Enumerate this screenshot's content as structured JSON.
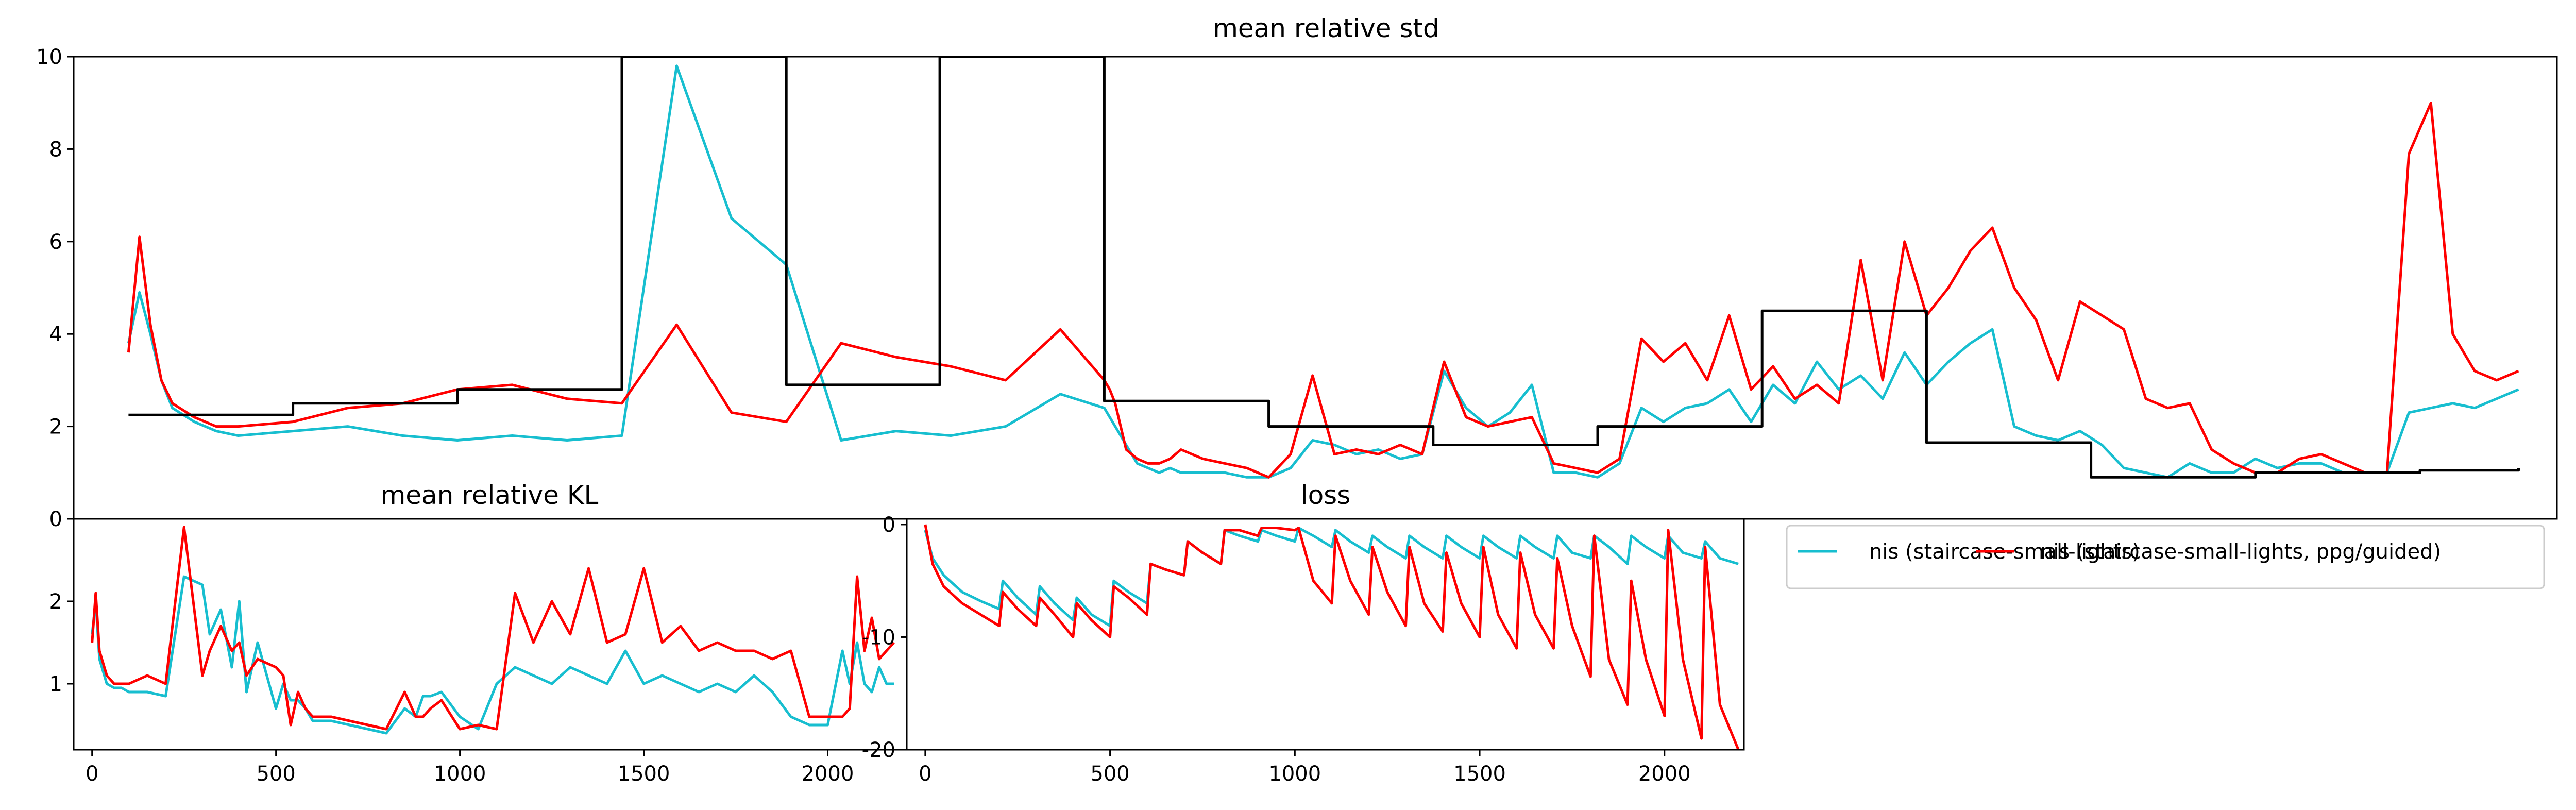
{
  "colors": {
    "nis": "#17becf",
    "ppg": "#ff0000",
    "black": "#000000"
  },
  "legend": {
    "entries": [
      {
        "label": "nis (staircase-small-lights)",
        "color": "#17becf"
      },
      {
        "label": "nis (staircase-small-lights, ppg/guided)",
        "color": "#ff0000"
      }
    ]
  },
  "chart_data": [
    {
      "id": "std",
      "type": "line",
      "title": "mean relative std",
      "xlim": [
        -50,
        2215
      ],
      "ylim": [
        0,
        10
      ],
      "xticks": [],
      "yticks": [
        0,
        2,
        4,
        6,
        8,
        10
      ],
      "series": [
        {
          "name": "nis (staircase-small-lights)",
          "color": "#17becf",
          "x": [
            0,
            10,
            20,
            30,
            40,
            60,
            80,
            100,
            150,
            200,
            250,
            300,
            350,
            400,
            450,
            500,
            550,
            600,
            650,
            700,
            750,
            800,
            850,
            890,
            895,
            900,
            910,
            920,
            930,
            940,
            950,
            960,
            980,
            1000,
            1020,
            1040,
            1060,
            1080,
            1100,
            1120,
            1140,
            1160,
            1180,
            1200,
            1220,
            1240,
            1260,
            1280,
            1300,
            1320,
            1340,
            1360,
            1380,
            1400,
            1420,
            1440,
            1460,
            1480,
            1500,
            1520,
            1540,
            1560,
            1580,
            1600,
            1620,
            1640,
            1660,
            1680,
            1700,
            1720,
            1740,
            1760,
            1780,
            1800,
            1820,
            1840,
            1860,
            1880,
            1900,
            1920,
            1940,
            1960,
            1980,
            2000,
            2020,
            2040,
            2060,
            2080,
            2100,
            2120,
            2140,
            2160,
            2180
          ],
          "y": [
            3.8,
            4.9,
            4.0,
            3.0,
            2.4,
            2.1,
            1.9,
            1.8,
            1.9,
            2.0,
            1.8,
            1.7,
            1.8,
            1.7,
            1.8,
            9.8,
            6.5,
            5.5,
            1.7,
            1.9,
            1.8,
            2.0,
            2.7,
            2.4,
            2.2,
            2.0,
            1.6,
            1.2,
            1.1,
            1.0,
            1.1,
            1.0,
            1.0,
            1.0,
            0.9,
            0.9,
            1.1,
            1.7,
            1.6,
            1.4,
            1.5,
            1.3,
            1.4,
            3.2,
            2.4,
            2.0,
            2.3,
            2.9,
            1.0,
            1.0,
            0.9,
            1.2,
            2.4,
            2.1,
            2.4,
            2.5,
            2.8,
            2.1,
            2.9,
            2.5,
            3.4,
            2.8,
            3.1,
            2.6,
            3.6,
            2.9,
            3.4,
            3.8,
            4.1,
            2.0,
            1.8,
            1.7,
            1.9,
            1.6,
            1.1,
            1.0,
            0.9,
            1.2,
            1.0,
            1.0,
            1.3,
            1.1,
            1.2,
            1.2,
            1.0,
            1.0,
            1.0,
            2.3,
            2.4,
            2.5,
            2.4,
            2.6,
            2.8
          ]
        },
        {
          "name": "nis (staircase-small-lights, ppg/guided)",
          "color": "#ff0000",
          "x": [
            0,
            10,
            20,
            30,
            40,
            60,
            80,
            100,
            150,
            200,
            250,
            300,
            350,
            400,
            450,
            500,
            550,
            600,
            650,
            700,
            750,
            800,
            850,
            890,
            895,
            900,
            910,
            920,
            930,
            940,
            950,
            960,
            980,
            1000,
            1020,
            1040,
            1060,
            1080,
            1100,
            1120,
            1140,
            1160,
            1180,
            1200,
            1220,
            1240,
            1260,
            1280,
            1300,
            1320,
            1340,
            1360,
            1380,
            1400,
            1420,
            1440,
            1460,
            1480,
            1500,
            1520,
            1540,
            1560,
            1580,
            1600,
            1620,
            1640,
            1660,
            1680,
            1700,
            1720,
            1740,
            1760,
            1780,
            1800,
            1820,
            1840,
            1860,
            1880,
            1900,
            1920,
            1940,
            1960,
            1980,
            2000,
            2020,
            2040,
            2060,
            2080,
            2100,
            2120,
            2140,
            2160,
            2180
          ],
          "y": [
            3.6,
            6.1,
            4.2,
            3.0,
            2.5,
            2.2,
            2.0,
            2.0,
            2.1,
            2.4,
            2.5,
            2.8,
            2.9,
            2.6,
            2.5,
            4.2,
            2.3,
            2.1,
            3.8,
            3.5,
            3.3,
            3.0,
            4.1,
            3.0,
            2.8,
            2.5,
            1.5,
            1.3,
            1.2,
            1.2,
            1.3,
            1.5,
            1.3,
            1.2,
            1.1,
            0.9,
            1.4,
            3.1,
            1.4,
            1.5,
            1.4,
            1.6,
            1.4,
            3.4,
            2.2,
            2.0,
            2.1,
            2.2,
            1.2,
            1.1,
            1.0,
            1.3,
            3.9,
            3.4,
            3.8,
            3.0,
            4.4,
            2.8,
            3.3,
            2.6,
            2.9,
            2.5,
            5.6,
            3.0,
            6.0,
            4.4,
            5.0,
            5.8,
            6.3,
            5.0,
            4.3,
            3.0,
            4.7,
            4.4,
            4.1,
            2.6,
            2.4,
            2.5,
            1.5,
            1.2,
            1.0,
            1.0,
            1.3,
            1.4,
            1.2,
            1.0,
            1.0,
            7.9,
            9.0,
            4.0,
            3.2,
            3.0,
            3.2
          ]
        },
        {
          "name": "",
          "color": "#000000",
          "step": true,
          "x": [
            0,
            150,
            300,
            450,
            600,
            740,
            890,
            1040,
            1190,
            1340,
            1490,
            1640,
            1790,
            1940,
            2090,
            2180
          ],
          "y": [
            2.25,
            2.5,
            2.8,
            10.0,
            2.9,
            10.0,
            2.55,
            2.0,
            1.6,
            2.0,
            4.5,
            1.65,
            0.9,
            1.0,
            1.05,
            1.1
          ]
        }
      ]
    },
    {
      "id": "kl",
      "type": "line",
      "title": "mean relative KL",
      "xlim": [
        -50,
        2215
      ],
      "ylim": [
        0.2,
        3.0
      ],
      "xticks": [
        0,
        500,
        1000,
        1500,
        2000
      ],
      "yticks": [
        1,
        2
      ],
      "series": [
        {
          "name": "nis (staircase-small-lights)",
          "color": "#17becf",
          "x": [
            0,
            10,
            20,
            40,
            60,
            80,
            100,
            150,
            200,
            250,
            300,
            320,
            350,
            380,
            400,
            420,
            450,
            500,
            520,
            540,
            560,
            580,
            600,
            650,
            700,
            750,
            800,
            850,
            880,
            900,
            920,
            950,
            1000,
            1050,
            1100,
            1150,
            1200,
            1250,
            1300,
            1350,
            1400,
            1450,
            1500,
            1550,
            1600,
            1650,
            1700,
            1750,
            1800,
            1850,
            1900,
            1950,
            2000,
            2040,
            2060,
            2080,
            2100,
            2120,
            2140,
            2160,
            2180
          ],
          "y": [
            1.6,
            2.0,
            1.3,
            1.0,
            0.95,
            0.95,
            0.9,
            0.9,
            0.85,
            2.3,
            2.2,
            1.6,
            1.9,
            1.2,
            2.0,
            0.9,
            1.5,
            0.7,
            1.0,
            0.8,
            0.8,
            0.7,
            0.55,
            0.55,
            0.5,
            0.45,
            0.4,
            0.7,
            0.6,
            0.85,
            0.85,
            0.9,
            0.6,
            0.45,
            1.0,
            1.2,
            1.1,
            1.0,
            1.2,
            1.1,
            1.0,
            1.4,
            1.0,
            1.1,
            1.0,
            0.9,
            1.0,
            0.9,
            1.1,
            0.9,
            0.6,
            0.5,
            0.5,
            1.4,
            1.0,
            1.5,
            1.0,
            0.9,
            1.2,
            1.0,
            1.0
          ]
        },
        {
          "name": "nis (staircase-small-lights, ppg/guided)",
          "color": "#ff0000",
          "x": [
            0,
            10,
            20,
            40,
            60,
            80,
            100,
            150,
            200,
            250,
            300,
            320,
            350,
            380,
            400,
            420,
            450,
            500,
            520,
            540,
            560,
            580,
            600,
            650,
            700,
            750,
            800,
            850,
            880,
            900,
            920,
            950,
            1000,
            1050,
            1100,
            1150,
            1200,
            1250,
            1300,
            1350,
            1400,
            1450,
            1500,
            1550,
            1600,
            1650,
            1700,
            1750,
            1800,
            1850,
            1900,
            1950,
            2000,
            2040,
            2060,
            2080,
            2100,
            2120,
            2140,
            2160,
            2180
          ],
          "y": [
            1.5,
            2.1,
            1.4,
            1.1,
            1.0,
            1.0,
            1.0,
            1.1,
            1.0,
            2.9,
            1.1,
            1.4,
            1.7,
            1.4,
            1.5,
            1.1,
            1.3,
            1.2,
            1.1,
            0.5,
            0.9,
            0.7,
            0.6,
            0.6,
            0.55,
            0.5,
            0.45,
            0.9,
            0.6,
            0.6,
            0.7,
            0.8,
            0.45,
            0.5,
            0.45,
            2.1,
            1.5,
            2.0,
            1.6,
            2.4,
            1.5,
            1.6,
            2.4,
            1.5,
            1.7,
            1.4,
            1.5,
            1.4,
            1.4,
            1.3,
            1.4,
            0.6,
            0.6,
            0.6,
            0.7,
            2.3,
            1.4,
            1.8,
            1.3,
            1.4,
            1.5
          ]
        }
      ]
    },
    {
      "id": "loss",
      "type": "line",
      "title": "loss",
      "xlim": [
        -50,
        2215
      ],
      "ylim": [
        -20,
        0.5
      ],
      "xticks": [
        0,
        500,
        1000,
        1500,
        2000
      ],
      "yticks": [
        -20,
        -10,
        0
      ],
      "series": [
        {
          "name": "nis (staircase-small-lights)",
          "color": "#17becf",
          "x": [
            0,
            20,
            50,
            100,
            150,
            200,
            210,
            250,
            300,
            310,
            350,
            400,
            410,
            450,
            500,
            510,
            550,
            600,
            610,
            650,
            700,
            710,
            750,
            800,
            810,
            850,
            900,
            910,
            950,
            1000,
            1010,
            1050,
            1100,
            1110,
            1150,
            1200,
            1210,
            1250,
            1300,
            1310,
            1350,
            1400,
            1410,
            1450,
            1500,
            1510,
            1550,
            1600,
            1610,
            1650,
            1700,
            1710,
            1750,
            1800,
            1810,
            1850,
            1900,
            1910,
            1950,
            2000,
            2010,
            2050,
            2100,
            2110,
            2150,
            2200
          ],
          "y": [
            -0.5,
            -3.0,
            -4.5,
            -6.0,
            -6.8,
            -7.5,
            -5.0,
            -6.5,
            -8.0,
            -5.5,
            -7.0,
            -8.5,
            -6.5,
            -8.0,
            -9.0,
            -5.0,
            -6.0,
            -7.0,
            -3.5,
            -4.0,
            -4.5,
            -1.5,
            -2.5,
            -3.5,
            -0.5,
            -1.0,
            -1.5,
            -0.5,
            -1.0,
            -1.5,
            -0.3,
            -1.0,
            -2.0,
            -0.5,
            -1.5,
            -2.5,
            -1.0,
            -2.0,
            -3.0,
            -1.0,
            -2.0,
            -3.0,
            -1.0,
            -2.0,
            -3.0,
            -1.0,
            -2.0,
            -3.0,
            -1.0,
            -2.0,
            -3.0,
            -1.0,
            -2.5,
            -3.0,
            -1.0,
            -2.0,
            -3.5,
            -1.0,
            -2.0,
            -3.0,
            -1.0,
            -2.5,
            -3.0,
            -1.5,
            -3.0,
            -3.5
          ]
        },
        {
          "name": "nis (staircase-small-lights, ppg/guided)",
          "color": "#ff0000",
          "x": [
            0,
            20,
            50,
            100,
            150,
            200,
            210,
            250,
            300,
            310,
            350,
            400,
            410,
            450,
            500,
            510,
            550,
            600,
            610,
            650,
            700,
            710,
            750,
            800,
            810,
            850,
            900,
            910,
            950,
            1000,
            1010,
            1050,
            1100,
            1110,
            1150,
            1200,
            1210,
            1250,
            1300,
            1310,
            1350,
            1400,
            1410,
            1450,
            1500,
            1510,
            1550,
            1600,
            1610,
            1650,
            1700,
            1710,
            1750,
            1800,
            1810,
            1850,
            1900,
            1910,
            1950,
            2000,
            2010,
            2050,
            2100,
            2110,
            2150,
            2200
          ],
          "y": [
            0,
            -3.5,
            -5.5,
            -7.0,
            -8.0,
            -9.0,
            -6.0,
            -7.5,
            -9.0,
            -6.5,
            -8.0,
            -10.0,
            -7.0,
            -8.5,
            -10.0,
            -5.5,
            -6.5,
            -8.0,
            -3.5,
            -4.0,
            -4.5,
            -1.5,
            -2.5,
            -3.5,
            -0.5,
            -0.5,
            -1.0,
            -0.3,
            -0.3,
            -0.5,
            -0.3,
            -5.0,
            -7.0,
            -1.0,
            -5.0,
            -8.0,
            -2.0,
            -6.0,
            -9.0,
            -2.0,
            -7.0,
            -9.5,
            -2.5,
            -7.0,
            -10.0,
            -2.0,
            -8.0,
            -11.0,
            -2.5,
            -8.0,
            -11.0,
            -3.0,
            -9.0,
            -13.5,
            -1.0,
            -12.0,
            -16.0,
            -5.0,
            -12.0,
            -17.0,
            -0.5,
            -12.0,
            -19.0,
            -2.0,
            -16.0,
            -20.0
          ]
        }
      ]
    }
  ]
}
